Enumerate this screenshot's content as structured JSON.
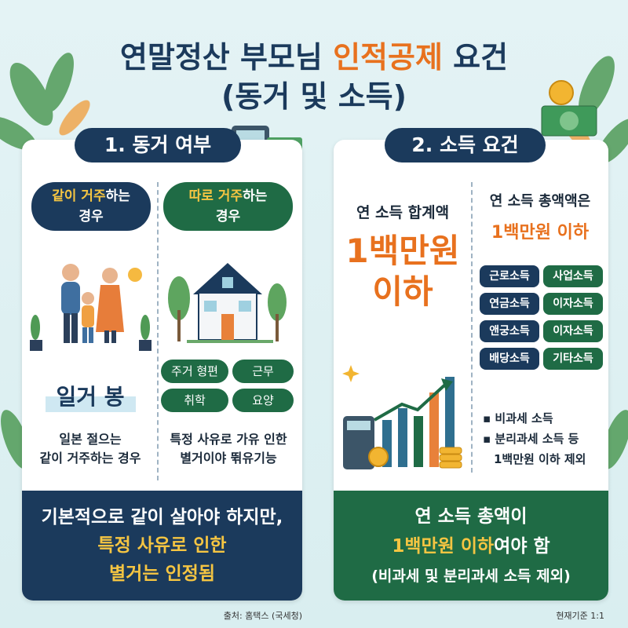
{
  "title": {
    "line1_start": "연말정산 부모님",
    "line1_highlight": "인적공제",
    "line1_end": "요건",
    "line2": "(동거 및 소득)"
  },
  "cohabitation": {
    "heading": "1. 동거 여부",
    "together": {
      "highlight": "같이 거주",
      "rest": "하는",
      "line2": "경우"
    },
    "apart": {
      "highlight": "따로 거주",
      "rest": "하는",
      "line2": "경우"
    },
    "together_title": "일거 봉",
    "together_desc": [
      "일본 절으는",
      "같이 거주하는 경우"
    ],
    "reasons": [
      "주거 형편",
      "근무",
      "취학",
      "요양"
    ],
    "apart_desc": [
      "특정 사유로 가유 인한",
      "별거이야 뛲유기능"
    ],
    "summary": [
      "기본적으로 같이 살아야 하지만,",
      "특정 사유로 인한",
      "별거는 인정됨"
    ]
  },
  "income": {
    "heading": "2. 소득 요건",
    "left_label": "연 소득 합계액",
    "left_amount": "1백만원",
    "left_below": "이하",
    "right_label": "연 소득 총액액은",
    "right_amount": "1백만원 이하",
    "types": [
      "근로소득",
      "사업소득",
      "연금소득",
      "이자소득",
      "앤궁소득",
      "이자소득",
      "배당소득",
      "기타소득"
    ],
    "exclusions": [
      "비과세 소득",
      "분리과세 소득 등",
      "1백만원 이하 제외"
    ],
    "summary": {
      "line1": "연 소득 총액이",
      "highlight": "1백만원 이하",
      "rest": "여야 함",
      "line3": "(비과세 및 분리과세 소득 제외)"
    }
  },
  "footer": {
    "source": "출처: 홈택스 (국세청)",
    "basis": "현재기준 1:1"
  }
}
